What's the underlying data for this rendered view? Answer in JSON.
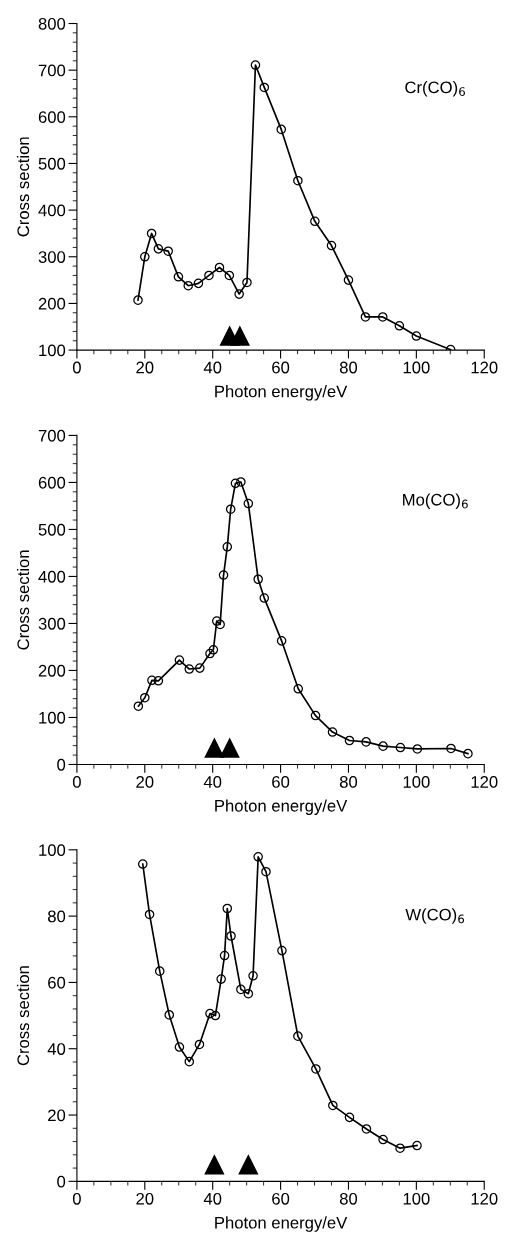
{
  "chart_data": [
    {
      "type": "line",
      "xlabel": "Photon energy/eV",
      "ylabel": "Cross section",
      "annotations": [
        "Cr(CO)$_{6}$"
      ],
      "marker": "circle",
      "line_style": "solid",
      "grid": false,
      "xlim": [
        0,
        120
      ],
      "xticks": [
        0,
        20,
        40,
        60,
        80,
        100,
        120
      ],
      "ylim": [
        100,
        800
      ],
      "yticks": [
        100,
        200,
        300,
        400,
        500,
        600,
        700,
        800
      ],
      "series": [
        {
          "type": "scatter",
          "marker": "triangle",
          "color": "#000000",
          "x": [
            45,
            48
          ],
          "values": [
            130,
            130
          ]
        },
        {
          "color": "#000000",
          "x": [
            18,
            20,
            22,
            24,
            26.9,
            29.9,
            32.8,
            35.8,
            38.9,
            42,
            44.9,
            47.8,
            50.1,
            52.6,
            55.2,
            60.2,
            65.1,
            70.1,
            75,
            80,
            85,
            90.1,
            95,
            100,
            110.1
          ],
          "values": [
            207,
            300,
            350,
            317,
            312,
            257,
            238,
            243,
            260,
            277,
            260,
            220,
            245,
            711,
            663,
            573,
            463,
            376,
            324,
            250,
            171,
            171,
            152,
            130,
            101
          ]
        }
      ]
    },
    {
      "type": "line",
      "xlabel": "Photon energy/eV",
      "ylabel": "Cross section",
      "annotations": [
        "Mo(CO)$_{6}$"
      ],
      "marker": "circle",
      "line_style": "solid",
      "grid": false,
      "xlim": [
        0,
        120
      ],
      "xticks": [
        0,
        20,
        40,
        60,
        80,
        100,
        120
      ],
      "ylim": [
        0,
        700
      ],
      "yticks": [
        0,
        100,
        200,
        300,
        400,
        500,
        600,
        700
      ],
      "series": [
        {
          "type": "scatter",
          "marker": "triangle",
          "color": "#000000",
          "x": [
            40.5,
            45
          ],
          "values": [
            35,
            35
          ]
        },
        {
          "color": "#000000",
          "x": [
            18.1,
            20,
            22.1,
            24,
            30.2,
            33.1,
            36.2,
            39.2,
            40.2,
            41.2,
            42.2,
            43.2,
            44.3,
            45.3,
            46.7,
            48.3,
            50.5,
            53.4,
            55.2,
            60.3,
            65.2,
            70.3,
            75.3,
            80.3,
            85.2,
            90.2,
            95.3,
            100.3,
            110.2,
            115.2
          ],
          "values": [
            124,
            142,
            179,
            178,
            222,
            203,
            205,
            236,
            244,
            305,
            298,
            403,
            463,
            543,
            598,
            601,
            555,
            394,
            354,
            263,
            161,
            104,
            69,
            51,
            48,
            39,
            36,
            33,
            34,
            23
          ]
        }
      ]
    },
    {
      "type": "line",
      "xlabel": "Photon energy/eV",
      "ylabel": "Cross section",
      "annotations": [
        "W(CO)$_{6}$"
      ],
      "marker": "circle",
      "line_style": "solid",
      "grid": false,
      "xlim": [
        0,
        120
      ],
      "xticks": [
        0,
        20,
        40,
        60,
        80,
        100,
        120
      ],
      "ylim": [
        0,
        100
      ],
      "yticks": [
        0,
        20,
        40,
        60,
        80,
        100
      ],
      "series": [
        {
          "type": "scatter",
          "marker": "triangle",
          "color": "#000000",
          "x": [
            40.5,
            50.5
          ],
          "values": [
            5,
            5
          ]
        },
        {
          "color": "#000000",
          "x": [
            19.4,
            21.4,
            24.4,
            27.2,
            30.2,
            33.1,
            36.1,
            39.2,
            40.8,
            42.5,
            43.5,
            44.3,
            45.4,
            48.3,
            50.5,
            51.9,
            53.4,
            55.7,
            60.4,
            65.1,
            70.4,
            75.4,
            80.3,
            85.3,
            90.2,
            95.2,
            100.2
          ],
          "values": [
            95.7,
            80.5,
            63.4,
            50.2,
            40.5,
            36.1,
            41.3,
            50.6,
            50,
            61,
            68.1,
            82.3,
            74,
            57.9,
            56.6,
            62,
            97.9,
            93.4,
            69.6,
            43.8,
            33.9,
            22.9,
            19.3,
            15.8,
            12.6,
            10,
            10.8
          ]
        }
      ]
    }
  ]
}
